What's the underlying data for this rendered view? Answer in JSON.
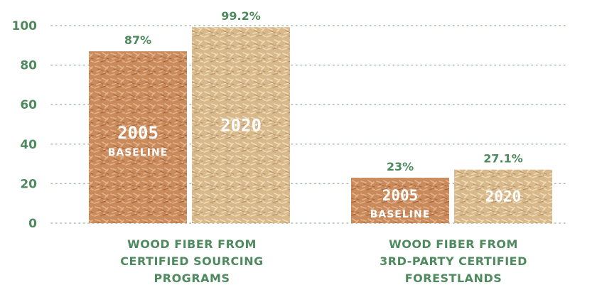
{
  "chart_data": {
    "type": "bar",
    "ylim": [
      0,
      100
    ],
    "yticks": [
      0,
      20,
      40,
      60,
      80,
      100
    ],
    "grid": true,
    "groups": [
      {
        "category": [
          "WOOD FIBER FROM",
          "CERTIFIED SOURCING",
          "PROGRAMS"
        ],
        "bars": [
          {
            "year": "2005",
            "sublabel": "BASELINE",
            "value": 87,
            "value_label": "87%",
            "color": "#c98a5c"
          },
          {
            "year": "2020",
            "sublabel": "",
            "value": 99.2,
            "value_label": "99.2%",
            "color": "#d8b98c"
          }
        ]
      },
      {
        "category": [
          "WOOD FIBER FROM",
          "3RD-PARTY CERTIFIED",
          "FORESTLANDS"
        ],
        "bars": [
          {
            "year": "2005",
            "sublabel": "BASELINE",
            "value": 23,
            "value_label": "23%",
            "color": "#c98a5c"
          },
          {
            "year": "2020",
            "sublabel": "",
            "value": 27.1,
            "value_label": "27.1%",
            "color": "#d8b98c"
          }
        ]
      }
    ],
    "colors": {
      "accent_text": "#4f8a5f",
      "grid": "#9fbca6",
      "baseline_bar": "#c98a5c",
      "current_bar": "#d8b98c"
    }
  }
}
